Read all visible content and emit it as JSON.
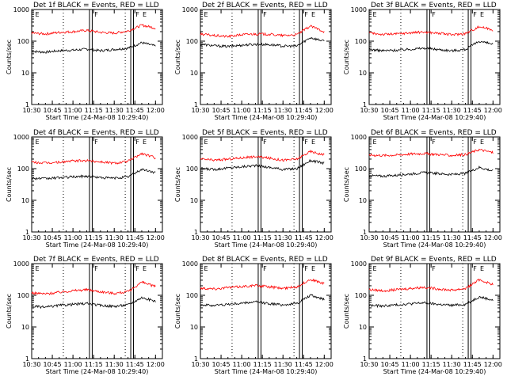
{
  "colors": {
    "events": "#000000",
    "lld": "#ff0000",
    "axes": "#000000",
    "background": "#ffffff"
  },
  "chart_data": [
    {
      "type": "line",
      "title": "Det 1f BLACK = Events, RED = LLD",
      "ylabel": "Counts/sec",
      "xlabel": "Start Time (24-Mar-08 10:29:40)",
      "yscale": "log",
      "ylim": [
        1,
        1000
      ],
      "ytick_labels": [
        "1",
        "10",
        "100",
        "1000"
      ],
      "x_tick_labels": [
        "10:30",
        "10:45",
        "11:00",
        "11:15",
        "11:30",
        "11:45",
        "12:00"
      ],
      "region_labels": [
        "E",
        "F",
        "F",
        "E"
      ],
      "x_minutes": [
        0,
        10,
        20,
        30,
        40,
        50,
        60,
        70,
        80,
        90
      ],
      "series": [
        {
          "values": [
            48,
            45,
            50,
            52,
            56,
            50,
            55,
            60,
            90,
            70
          ]
        },
        {
          "values": [
            180,
            170,
            190,
            200,
            220,
            190,
            180,
            210,
            320,
            260
          ]
        }
      ]
    },
    {
      "type": "line",
      "title": "Det 2f BLACK = Events, RED = LLD",
      "ylabel": "Counts/sec",
      "xlabel": "Start Time (24-Mar-08 10:29:40)",
      "yscale": "log",
      "ylim": [
        1,
        1000
      ],
      "ytick_labels": [
        "1",
        "10",
        "100",
        "1000"
      ],
      "x_tick_labels": [
        "10:30",
        "10:45",
        "11:00",
        "11:15",
        "11:30",
        "11:45",
        "12:00"
      ],
      "region_labels": [
        "E",
        "F",
        "F",
        "E"
      ],
      "x_minutes": [
        0,
        10,
        20,
        30,
        40,
        50,
        60,
        70,
        80,
        90
      ],
      "series": [
        {
          "values": [
            80,
            72,
            68,
            75,
            80,
            78,
            70,
            70,
            130,
            100
          ]
        },
        {
          "values": [
            170,
            150,
            140,
            160,
            170,
            165,
            150,
            160,
            300,
            200
          ]
        }
      ]
    },
    {
      "type": "line",
      "title": "Det 3f BLACK = Events, RED = LLD",
      "ylabel": "Counts/sec",
      "xlabel": "Start Time (24-Mar-08 10:29:40)",
      "yscale": "log",
      "ylim": [
        1,
        1000
      ],
      "ytick_labels": [
        "1",
        "10",
        "100",
        "1000"
      ],
      "x_tick_labels": [
        "10:30",
        "10:45",
        "11:00",
        "11:15",
        "11:30",
        "11:45",
        "12:00"
      ],
      "region_labels": [
        "E",
        "F",
        "F",
        "E"
      ],
      "x_minutes": [
        0,
        10,
        20,
        30,
        40,
        50,
        60,
        70,
        80,
        90
      ],
      "series": [
        {
          "values": [
            55,
            50,
            52,
            56,
            60,
            55,
            50,
            55,
            100,
            80
          ]
        },
        {
          "values": [
            180,
            165,
            170,
            185,
            195,
            180,
            160,
            175,
            290,
            230
          ]
        }
      ]
    },
    {
      "type": "line",
      "title": "Det 4f BLACK = Events, RED = LLD",
      "ylabel": "Counts/sec",
      "xlabel": "Start Time (24-Mar-08 10:29:40)",
      "yscale": "log",
      "ylim": [
        1,
        1000
      ],
      "ytick_labels": [
        "1",
        "10",
        "100",
        "1000"
      ],
      "x_tick_labels": [
        "10:30",
        "10:45",
        "11:00",
        "11:15",
        "11:30",
        "11:45",
        "12:00"
      ],
      "region_labels": [
        "E",
        "F",
        "F",
        "E"
      ],
      "x_minutes": [
        0,
        10,
        20,
        30,
        40,
        50,
        60,
        70,
        80,
        90
      ],
      "series": [
        {
          "values": [
            50,
            48,
            52,
            55,
            58,
            52,
            50,
            55,
            95,
            75
          ]
        },
        {
          "values": [
            160,
            150,
            160,
            175,
            180,
            165,
            150,
            170,
            300,
            220
          ]
        }
      ]
    },
    {
      "type": "line",
      "title": "Det 5f BLACK = Events, RED = LLD",
      "ylabel": "Counts/sec",
      "xlabel": "Start Time (24-Mar-08 10:29:40)",
      "yscale": "log",
      "ylim": [
        1,
        1000
      ],
      "ytick_labels": [
        "1",
        "10",
        "100",
        "1000"
      ],
      "x_tick_labels": [
        "10:30",
        "10:45",
        "11:00",
        "11:15",
        "11:30",
        "11:45",
        "12:00"
      ],
      "region_labels": [
        "E",
        "F",
        "F",
        "E"
      ],
      "x_minutes": [
        0,
        10,
        20,
        30,
        40,
        50,
        60,
        70,
        80,
        90
      ],
      "series": [
        {
          "values": [
            100,
            95,
            105,
            115,
            125,
            110,
            95,
            100,
            180,
            150
          ]
        },
        {
          "values": [
            200,
            185,
            200,
            220,
            240,
            215,
            185,
            200,
            350,
            270
          ]
        }
      ]
    },
    {
      "type": "line",
      "title": "Det 6f BLACK = Events, RED = LLD",
      "ylabel": "Counts/sec",
      "xlabel": "Start Time (24-Mar-08 10:29:40)",
      "yscale": "log",
      "ylim": [
        1,
        1000
      ],
      "ytick_labels": [
        "1",
        "10",
        "100",
        "1000"
      ],
      "x_tick_labels": [
        "10:30",
        "10:45",
        "11:00",
        "11:15",
        "11:30",
        "11:45",
        "12:00"
      ],
      "region_labels": [
        "E",
        "F",
        "F",
        "E"
      ],
      "x_minutes": [
        0,
        10,
        20,
        30,
        40,
        50,
        60,
        70,
        80,
        90
      ],
      "series": [
        {
          "values": [
            60,
            58,
            62,
            68,
            75,
            70,
            65,
            70,
            110,
            85
          ]
        },
        {
          "values": [
            270,
            260,
            270,
            290,
            300,
            280,
            260,
            280,
            400,
            320
          ]
        }
      ]
    },
    {
      "type": "line",
      "title": "Det 7f BLACK = Events, RED = LLD",
      "ylabel": "Counts/sec",
      "xlabel": "Start Time (24-Mar-08 10:29:40)",
      "yscale": "log",
      "ylim": [
        1,
        1000
      ],
      "ytick_labels": [
        "1",
        "10",
        "100",
        "1000"
      ],
      "x_tick_labels": [
        "10:30",
        "10:45",
        "11:00",
        "11:15",
        "11:30",
        "11:45",
        "12:00"
      ],
      "region_labels": [
        "E",
        "F",
        "F",
        "E"
      ],
      "x_minutes": [
        0,
        10,
        20,
        30,
        40,
        50,
        60,
        70,
        80,
        90
      ],
      "series": [
        {
          "values": [
            45,
            42,
            48,
            52,
            55,
            48,
            45,
            50,
            85,
            65
          ]
        },
        {
          "values": [
            120,
            110,
            125,
            140,
            150,
            130,
            115,
            130,
            260,
            190
          ]
        }
      ]
    },
    {
      "type": "line",
      "title": "Det 8f BLACK = Events, RED = LLD",
      "ylabel": "Counts/sec",
      "xlabel": "Start Time (24-Mar-08 10:29:40)",
      "yscale": "log",
      "ylim": [
        1,
        1000
      ],
      "ytick_labels": [
        "1",
        "10",
        "100",
        "1000"
      ],
      "x_tick_labels": [
        "10:30",
        "10:45",
        "11:00",
        "11:15",
        "11:30",
        "11:45",
        "12:00"
      ],
      "region_labels": [
        "E",
        "F",
        "F",
        "E"
      ],
      "x_minutes": [
        0,
        10,
        20,
        30,
        40,
        50,
        60,
        70,
        80,
        90
      ],
      "series": [
        {
          "values": [
            50,
            48,
            52,
            56,
            62,
            55,
            50,
            55,
            100,
            75
          ]
        },
        {
          "values": [
            170,
            160,
            175,
            190,
            205,
            185,
            165,
            185,
            320,
            230
          ]
        }
      ]
    },
    {
      "type": "line",
      "title": "Det 9f BLACK = Events, RED = LLD",
      "ylabel": "Counts/sec",
      "xlabel": "Start Time (24-Mar-08 10:29:40)",
      "yscale": "log",
      "ylim": [
        1,
        1000
      ],
      "ytick_labels": [
        "1",
        "10",
        "100",
        "1000"
      ],
      "x_tick_labels": [
        "10:30",
        "10:45",
        "11:00",
        "11:15",
        "11:30",
        "11:45",
        "12:00"
      ],
      "region_labels": [
        "E",
        "F",
        "F",
        "E"
      ],
      "x_minutes": [
        0,
        10,
        20,
        30,
        40,
        50,
        60,
        70,
        80,
        90
      ],
      "series": [
        {
          "values": [
            48,
            46,
            50,
            54,
            58,
            52,
            48,
            52,
            90,
            70
          ]
        },
        {
          "values": [
            150,
            140,
            150,
            165,
            180,
            160,
            145,
            165,
            310,
            220
          ]
        }
      ]
    }
  ]
}
